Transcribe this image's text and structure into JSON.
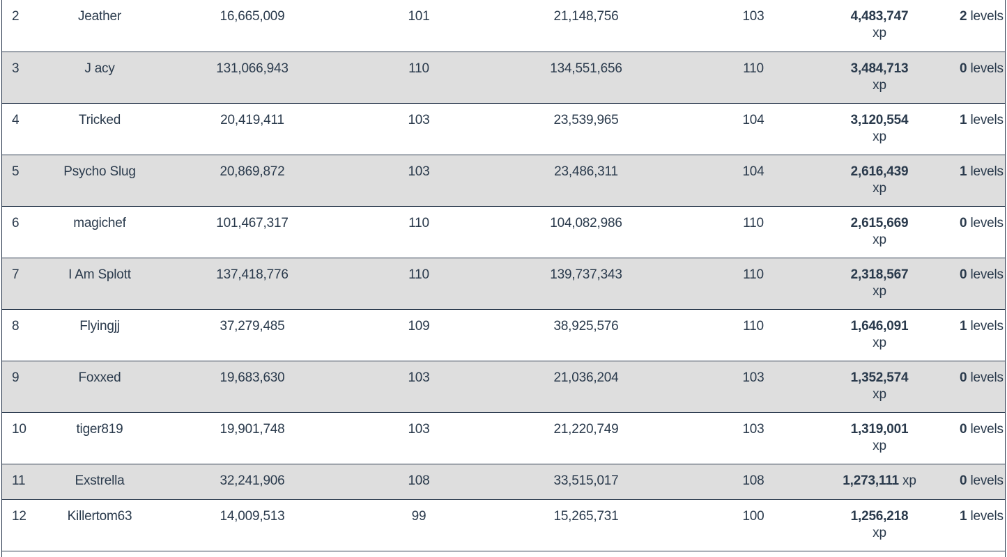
{
  "rows": [
    {
      "rank": "2",
      "name": "Jeather",
      "start_xp": "16,665,009",
      "start_level": "101",
      "end_xp": "21,148,756",
      "end_level": "103",
      "gained": "4,483,747",
      "gained_unit": "xp",
      "levels_num": "2",
      "levels_label": "levels"
    },
    {
      "rank": "3",
      "name": "J acy",
      "start_xp": "131,066,943",
      "start_level": "110",
      "end_xp": "134,551,656",
      "end_level": "110",
      "gained": "3,484,713",
      "gained_unit": "xp",
      "levels_num": "0",
      "levels_label": "levels"
    },
    {
      "rank": "4",
      "name": "Tricked",
      "start_xp": "20,419,411",
      "start_level": "103",
      "end_xp": "23,539,965",
      "end_level": "104",
      "gained": "3,120,554",
      "gained_unit": "xp",
      "levels_num": "1",
      "levels_label": "levels"
    },
    {
      "rank": "5",
      "name": "Psycho Slug",
      "start_xp": "20,869,872",
      "start_level": "103",
      "end_xp": "23,486,311",
      "end_level": "104",
      "gained": "2,616,439",
      "gained_unit": "xp",
      "levels_num": "1",
      "levels_label": "levels"
    },
    {
      "rank": "6",
      "name": "magichef",
      "start_xp": "101,467,317",
      "start_level": "110",
      "end_xp": "104,082,986",
      "end_level": "110",
      "gained": "2,615,669",
      "gained_unit": "xp",
      "levels_num": "0",
      "levels_label": "levels"
    },
    {
      "rank": "7",
      "name": "I Am Splott",
      "start_xp": "137,418,776",
      "start_level": "110",
      "end_xp": "139,737,343",
      "end_level": "110",
      "gained": "2,318,567",
      "gained_unit": "xp",
      "levels_num": "0",
      "levels_label": "levels"
    },
    {
      "rank": "8",
      "name": "Flyingjj",
      "start_xp": "37,279,485",
      "start_level": "109",
      "end_xp": "38,925,576",
      "end_level": "110",
      "gained": "1,646,091",
      "gained_unit": "xp",
      "levels_num": "1",
      "levels_label": "levels"
    },
    {
      "rank": "9",
      "name": "Foxxed",
      "start_xp": "19,683,630",
      "start_level": "103",
      "end_xp": "21,036,204",
      "end_level": "103",
      "gained": "1,352,574",
      "gained_unit": "xp",
      "levels_num": "0",
      "levels_label": "levels"
    },
    {
      "rank": "10",
      "name": "tiger819",
      "start_xp": "19,901,748",
      "start_level": "103",
      "end_xp": "21,220,749",
      "end_level": "103",
      "gained": "1,319,001",
      "gained_unit": "xp",
      "levels_num": "0",
      "levels_label": "levels"
    },
    {
      "rank": "11",
      "name": "Exstrella",
      "start_xp": "32,241,906",
      "start_level": "108",
      "end_xp": "33,515,017",
      "end_level": "108",
      "gained": "1,273,111",
      "gained_unit": "xp",
      "levels_num": "0",
      "levels_label": "levels"
    },
    {
      "rank": "12",
      "name": "Killertom63",
      "start_xp": "14,009,513",
      "start_level": "99",
      "end_xp": "15,265,731",
      "end_level": "100",
      "gained": "1,256,218",
      "gained_unit": "xp",
      "levels_num": "1",
      "levels_label": "levels"
    }
  ]
}
